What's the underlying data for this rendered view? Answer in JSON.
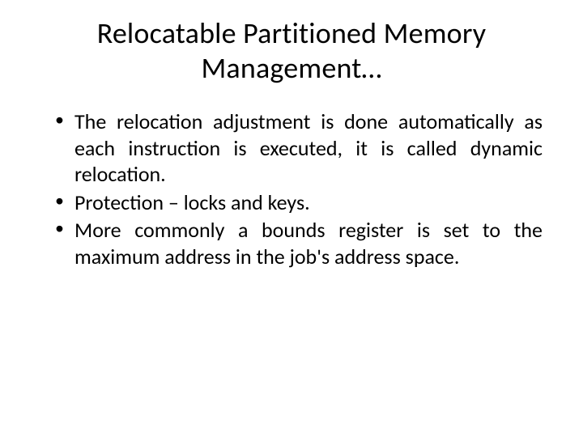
{
  "slide": {
    "title": "Relocatable Partitioned Memory Management…",
    "bullets": [
      "The relocation adjustment is done automatically as each instruction is executed, it is called dynamic relocation.",
      "Protection – locks and keys.",
      "More commonly a bounds register is set to the maximum address in the job's address space."
    ]
  },
  "style": {
    "background_color": "#ffffff",
    "text_color": "#000000",
    "title_fontsize": 36,
    "body_fontsize": 26,
    "font_family": "Calibri"
  }
}
